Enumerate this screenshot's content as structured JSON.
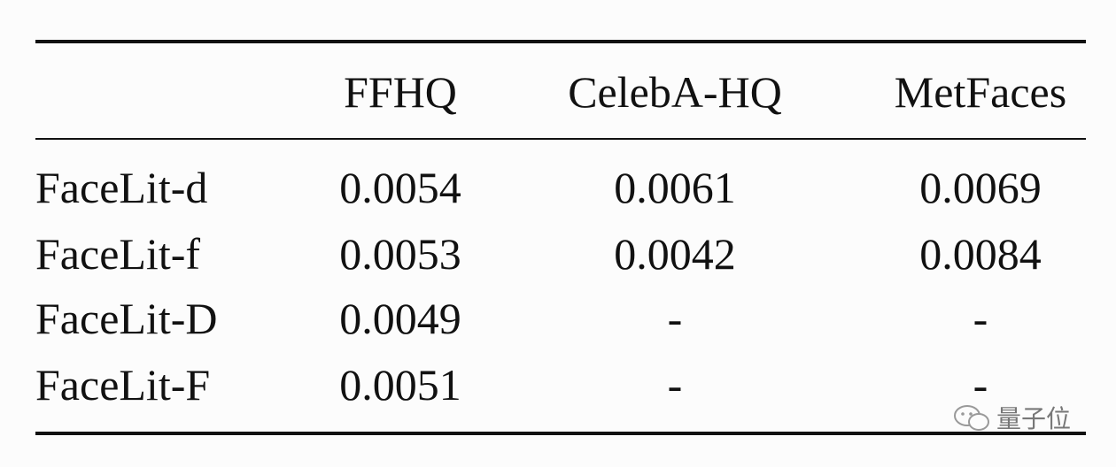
{
  "table": {
    "header": [
      "FFHQ",
      "CelebA-HQ",
      "MetFaces"
    ],
    "rows": [
      [
        "FaceLit-d",
        "0.0054",
        "0.0061",
        "0.0069"
      ],
      [
        "FaceLit-f",
        "0.0053",
        "0.0042",
        "0.0084"
      ],
      [
        "FaceLit-D",
        "0.0049",
        "-",
        "-"
      ],
      [
        "FaceLit-F",
        "0.0051",
        "-",
        "-"
      ]
    ]
  },
  "watermark": "量子位"
}
